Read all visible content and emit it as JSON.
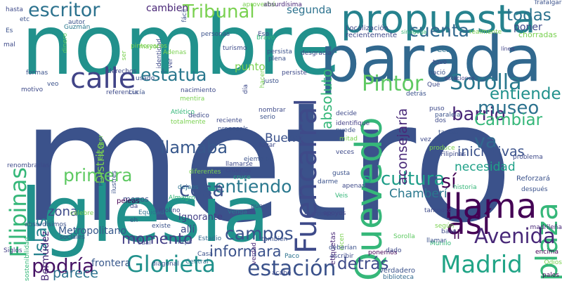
{
  "cloud": {
    "words": [
      {
        "text": "metro",
        "color": "#3b528b"
      },
      {
        "text": "nombre",
        "color": "#21918c"
      },
      {
        "text": "Iglesia",
        "color": "#21918c"
      },
      {
        "text": "parada",
        "color": "#31688e"
      },
      {
        "text": "propuesta",
        "color": "#26828e"
      },
      {
        "text": "calle",
        "color": "#414487"
      },
      {
        "text": "Quevedo",
        "color": "#35b779"
      },
      {
        "text": "Pintor",
        "color": "#5ec962"
      },
      {
        "text": "Sorolla",
        "color": "#2a788e"
      },
      {
        "text": "Fuencarral",
        "color": "#3e4a89"
      },
      {
        "text": "Islas",
        "color": "#26828e"
      },
      {
        "text": "Filipinas",
        "color": "#35b779"
      },
      {
        "text": "llama",
        "color": "#440154"
      },
      {
        "text": "Madrid",
        "color": "#20a486"
      },
      {
        "text": "Glorieta",
        "color": "#21918c"
      },
      {
        "text": "estación",
        "color": "#3b528b"
      },
      {
        "text": "escritor",
        "color": "#2c728e"
      },
      {
        "text": "estatua",
        "color": "#2a788e"
      },
      {
        "text": "llamaba",
        "color": "#38588c"
      },
      {
        "text": "barrio",
        "color": "#482576"
      },
      {
        "text": "museo",
        "color": "#2c728e"
      },
      {
        "text": "plaza",
        "color": "#35b779"
      },
      {
        "text": "así",
        "color": "#440154"
      },
      {
        "text": "entiendo",
        "color": "#2a788e"
      },
      {
        "text": "cosa",
        "color": "#3b528b"
      },
      {
        "text": "Avenida",
        "color": "#482878"
      },
      {
        "text": "podría",
        "color": "#471365"
      },
      {
        "text": "Tribunal",
        "color": "#7ad151"
      },
      {
        "text": "cuenta",
        "color": "#31688e"
      },
      {
        "text": "todas",
        "color": "#2c728e"
      },
      {
        "text": "entiende",
        "color": "#21918c"
      },
      {
        "text": "Cambiar",
        "color": "#35b779"
      },
      {
        "text": "campos",
        "color": "#3b528b"
      },
      {
        "text": "primera",
        "color": "#5ec962"
      },
      {
        "text": "detrás",
        "color": "#3e4a89"
      },
      {
        "text": "cultura",
        "color": "#1f9e89"
      },
      {
        "text": "va",
        "color": "#31688e"
      },
      {
        "text": "sí",
        "color": "#440154"
      },
      {
        "text": "P",
        "color": "#22a884"
      },
      {
        "text": "absoluto",
        "color": "#35b779"
      },
      {
        "text": "aconsejaría",
        "color": "#482878"
      },
      {
        "text": "momento",
        "color": "#433e85"
      },
      {
        "text": "informara",
        "color": "#3b528b"
      },
      {
        "text": "parece",
        "color": "#2c728e"
      },
      {
        "text": "zona",
        "color": "#3e4a89"
      },
      {
        "text": "ll",
        "color": "#440154"
      },
      {
        "text": "iniciativas",
        "color": "#3b528b"
      },
      {
        "text": "necesidad",
        "color": "#1fa188"
      },
      {
        "text": "cambien",
        "color": "#482576"
      },
      {
        "text": "segunda",
        "color": "#2c728e"
      },
      {
        "text": "punto",
        "color": "#7ad151"
      },
      {
        "text": "poner",
        "color": "#3e4a89"
      },
      {
        "text": "Bueno",
        "color": "#3b528b"
      },
      {
        "text": "Chamberí",
        "color": "#2a788e"
      },
      {
        "text": "Ignorante",
        "color": "#433e85"
      },
      {
        "text": "Metropolitano",
        "color": "#38588c"
      },
      {
        "text": "Distrito",
        "color": "#7ad151"
      },
      {
        "text": "Bermúdez",
        "color": "#482878"
      },
      {
        "text": "allí",
        "color": "#3e4a89"
      },
      {
        "text": "frontera",
        "color": "#38588c"
      },
      {
        "text": "menos",
        "color": "#3b528b"
      },
      {
        "text": "Almagro",
        "color": "#35b779"
      },
      {
        "text": "Guzmán",
        "color": "#2a788e"
      },
      {
        "text": "dinero",
        "color": "#5ec962"
      },
      {
        "text": "Localización",
        "color": "#3e4a89"
      },
      {
        "text": "recientemente",
        "color": "#3e4a89"
      },
      {
        "text": "aprovechó",
        "color": "#7ad151"
      },
      {
        "text": "absurdísima",
        "color": "#482878"
      },
      {
        "text": "Trafalgar",
        "color": "#3b528b"
      },
      {
        "text": "realmente",
        "color": "#7ad151"
      },
      {
        "text": "chorradas",
        "color": "#7ad151"
      },
      {
        "text": "sinagoga",
        "color": "#35b779"
      },
      {
        "text": "estaciones",
        "color": "#433e85"
      },
      {
        "text": "Cea",
        "color": "#2c728e"
      },
      {
        "text": "línea",
        "color": "#414487"
      },
      {
        "text": "problema",
        "color": "#3e4a89"
      },
      {
        "text": "Reforzará",
        "color": "#3b528b"
      },
      {
        "text": "historia",
        "color": "#35b779"
      },
      {
        "text": "madrileña",
        "color": "#482878"
      },
      {
        "text": "encima",
        "color": "#440154"
      },
      {
        "text": "palos",
        "color": "#440154"
      },
      {
        "text": "verdadero",
        "color": "#3b528b"
      },
      {
        "text": "biblioteca",
        "color": "#31688e"
      },
      {
        "text": "ponemos",
        "color": "#440154"
      },
      {
        "text": "Murillo",
        "color": "#35b779"
      },
      {
        "text": "Sorolla",
        "color": "#5ec962"
      },
      {
        "text": "etiquetas",
        "color": "#482878"
      },
      {
        "text": "martinez",
        "color": "#3e4a89"
      },
      {
        "text": "apoyos",
        "color": "#414487"
      },
      {
        "text": "dicen",
        "color": "#7ad151"
      },
      {
        "text": "escribir",
        "color": "#3e4a89"
      },
      {
        "text": "deberían",
        "color": "#3b528b"
      },
      {
        "text": "sociales",
        "color": "#3b528b"
      },
      {
        "text": "Siglos",
        "color": "#433e85"
      },
      {
        "text": "sostenibilidad",
        "color": "#35b779"
      },
      {
        "text": "peleas",
        "color": "#440154"
      },
      {
        "text": "Equidad",
        "color": "#2c728e"
      },
      {
        "text": "molino",
        "color": "#3e4a89"
      },
      {
        "text": "puerta",
        "color": "#3b528b"
      },
      {
        "text": "Venga",
        "color": "#2a788e"
      },
      {
        "text": "Estadio",
        "color": "#31688e"
      },
      {
        "text": "https",
        "color": "#3b528b"
      },
      {
        "text": "Casa",
        "color": "#3b528b"
      },
      {
        "text": "Paco",
        "color": "#2c728e"
      },
      {
        "text": "acabo",
        "color": "#3e4a89"
      },
      {
        "text": "diagonal",
        "color": "#3b528b"
      },
      {
        "text": "Central",
        "color": "#2c728e"
      },
      {
        "text": "llamarse",
        "color": "#3e4a89"
      },
      {
        "text": "ejemplo",
        "color": "#3b528b"
      },
      {
        "text": "criterios",
        "color": "#3e4a89"
      },
      {
        "text": "cruce",
        "color": "#22a884"
      },
      {
        "text": "dejaos",
        "color": "#2c728e"
      },
      {
        "text": "verdad",
        "color": "#482878"
      },
      {
        "text": "Veis",
        "color": "#35b779"
      },
      {
        "text": "darme",
        "color": "#3b528b"
      },
      {
        "text": "apenas",
        "color": "#3e4a89"
      },
      {
        "text": "gusta",
        "color": "#3b528b"
      },
      {
        "text": "veces",
        "color": "#3e4a89"
      },
      {
        "text": "mitad",
        "color": "#7ad151"
      },
      {
        "text": "lugar",
        "color": "#3e4a89"
      },
      {
        "text": "puede",
        "color": "#3b528b"
      },
      {
        "text": "identifique",
        "color": "#433e85"
      },
      {
        "text": "decide",
        "color": "#3e4a89"
      },
      {
        "text": "nombrar",
        "color": "#3e4a89"
      },
      {
        "text": "serio",
        "color": "#3b528b"
      },
      {
        "text": "reciente",
        "color": "#3e4a89"
      },
      {
        "text": "proposals",
        "color": "#3b528b"
      },
      {
        "text": "Atlético",
        "color": "#35b779"
      },
      {
        "text": "totalmente",
        "color": "#7ad151"
      },
      {
        "text": "dedico",
        "color": "#3e4a89"
      },
      {
        "text": "mentira",
        "color": "#7ad151"
      },
      {
        "text": "nacimiento",
        "color": "#3e4a89"
      },
      {
        "text": "Lucía",
        "color": "#3b528b"
      },
      {
        "text": "referencia",
        "color": "#3e4a89"
      },
      {
        "text": "veo",
        "color": "#3b528b"
      },
      {
        "text": "motivo",
        "color": "#3e4a89"
      },
      {
        "text": "formas",
        "color": "#3b528b"
      },
      {
        "text": "derechos",
        "color": "#3e4a89"
      },
      {
        "text": "usado",
        "color": "#3b528b"
      },
      {
        "text": "día",
        "color": "#3e4a89"
      },
      {
        "text": "justo",
        "color": "#3b528b"
      },
      {
        "text": "hacer",
        "color": "#7ad151"
      },
      {
        "text": "persiste",
        "color": "#3e4a89"
      },
      {
        "text": "persista",
        "color": "#3b528b"
      },
      {
        "text": "desgracia",
        "color": "#3e4a89"
      },
      {
        "text": "plena",
        "color": "#3b528b"
      },
      {
        "text": "turismo",
        "color": "#3e4a89"
      },
      {
        "text": "Bravo",
        "color": "#35b779"
      },
      {
        "text": "Eso",
        "color": "#3e4a89"
      },
      {
        "text": "personas",
        "color": "#3b528b"
      },
      {
        "text": "identidad",
        "color": "#3e4a89"
      },
      {
        "text": "fácil",
        "color": "#3b528b"
      },
      {
        "text": "mayor",
        "color": "#7ad151"
      },
      {
        "text": "pintorescos",
        "color": "#7ad151"
      },
      {
        "text": "tuvo",
        "color": "#3e4a89"
      },
      {
        "text": "nació",
        "color": "#3b528b"
      },
      {
        "text": "Qué",
        "color": "#3e4a89"
      },
      {
        "text": "detrás",
        "color": "#3b528b"
      },
      {
        "text": "puso",
        "color": "#3e4a89"
      },
      {
        "text": "paralela",
        "color": "#3b528b"
      },
      {
        "text": "dos",
        "color": "#3e4a89"
      },
      {
        "text": "tantas",
        "color": "#3b528b"
      },
      {
        "text": "vez",
        "color": "#3e4a89"
      },
      {
        "text": "produce",
        "color": "#7ad151"
      },
      {
        "text": "Filipinas",
        "color": "#3e4a89"
      },
      {
        "text": "después",
        "color": "#3b528b"
      },
      {
        "text": "tampoco",
        "color": "#3e4a89"
      },
      {
        "text": "según",
        "color": "#7ad151"
      },
      {
        "text": "base",
        "color": "#3e4a89"
      },
      {
        "text": "llamar",
        "color": "#3b528b"
      },
      {
        "text": "dado",
        "color": "#3e4a89"
      },
      {
        "text": "Odios",
        "color": "#7ad151"
      },
      {
        "text": "Es",
        "color": "#3b528b"
      },
      {
        "text": "mal",
        "color": "#3e4a89"
      },
      {
        "text": "autor",
        "color": "#3b528b"
      },
      {
        "text": "hasta",
        "color": "#3e4a89"
      },
      {
        "text": "etc",
        "color": "#3b528b"
      },
      {
        "text": "escoger",
        "color": "#7ad151"
      },
      {
        "text": "por",
        "color": "#3e4a89"
      },
      {
        "text": "ilustres",
        "color": "#3b528b"
      },
      {
        "text": "renombrarlas",
        "color": "#3e4a89"
      },
      {
        "text": "absurdísimos",
        "color": "#3b528b"
      },
      {
        "text": "célebre",
        "color": "#7ad151"
      },
      {
        "text": "da",
        "color": "#3e4a89"
      },
      {
        "text": "eh",
        "color": "#3b528b"
      },
      {
        "text": "ello",
        "color": "#3e4a89"
      },
      {
        "text": "existe",
        "color": "#3b528b"
      },
      {
        "text": "cuál",
        "color": "#3e4a89"
      },
      {
        "text": "también",
        "color": "#3b528b"
      },
      {
        "text": "ser",
        "color": "#7ad151"
      },
      {
        "text": "ver",
        "color": "#3e4a89"
      },
      {
        "text": "Adenas",
        "color": "#7ad151"
      },
      {
        "text": "diferentes",
        "color": "#7ad151"
      },
      {
        "text": "sí",
        "color": "#3e4a89"
      }
    ]
  }
}
